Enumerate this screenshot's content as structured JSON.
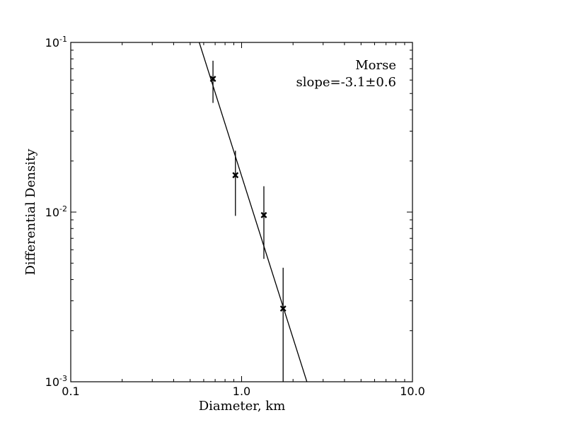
{
  "chart_data": {
    "type": "scatter",
    "xlabel": "Diameter, km",
    "ylabel": "Differential Density",
    "xscale": "log",
    "yscale": "log",
    "xlim": [
      0.1,
      10.0
    ],
    "ylim": [
      0.001,
      0.1
    ],
    "x_ticks": [
      {
        "value": 0.1,
        "label": "0.1"
      },
      {
        "value": 1.0,
        "label": "1.0"
      },
      {
        "value": 10.0,
        "label": "10.0"
      }
    ],
    "y_ticks": [
      {
        "value": 0.001,
        "base": "10",
        "exp": "-3"
      },
      {
        "value": 0.01,
        "base": "10",
        "exp": "-2"
      },
      {
        "value": 0.1,
        "base": "10",
        "exp": "-1"
      }
    ],
    "annotation": {
      "lines": [
        "Morse",
        "slope=-3.1±0.6"
      ],
      "placement": "top-right"
    },
    "points": [
      {
        "x": 0.68,
        "y": 0.061,
        "y_low": 0.044,
        "y_high": 0.078
      },
      {
        "x": 0.92,
        "y": 0.0165,
        "y_low": 0.0095,
        "y_high": 0.023
      },
      {
        "x": 1.35,
        "y": 0.0096,
        "y_low": 0.0053,
        "y_high": 0.0142
      },
      {
        "x": 1.75,
        "y": 0.0027,
        "y_low": 0.001,
        "y_high": 0.0047
      }
    ],
    "fit_line": {
      "slope": -3.1,
      "x": [
        0.565,
        2.41
      ],
      "y": [
        0.1,
        0.001
      ]
    },
    "grid": false,
    "colors": {
      "line": "#000000",
      "marker": "#000000"
    }
  }
}
